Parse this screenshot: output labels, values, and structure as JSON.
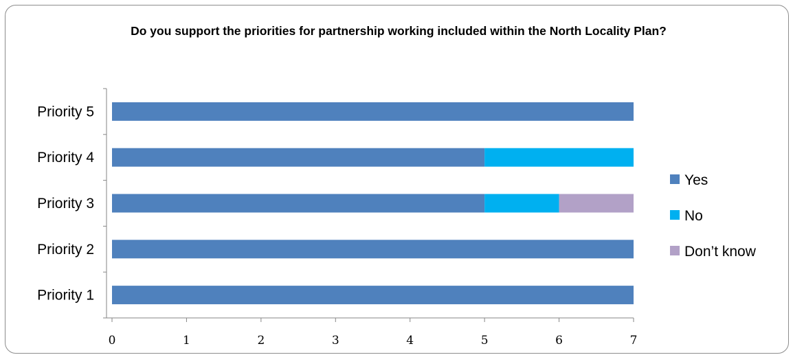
{
  "chart_data": {
    "type": "bar",
    "orientation": "horizontal",
    "stacked": true,
    "title": "Do you support the priorities for partnership working included within the North Locality Plan?",
    "categories": [
      "Priority 1",
      "Priority 2",
      "Priority 3",
      "Priority 4",
      "Priority 5"
    ],
    "series": [
      {
        "name": "Yes",
        "color": "#4F81BD",
        "values": [
          7,
          7,
          5,
          5,
          7
        ]
      },
      {
        "name": "No",
        "color": "#00B0F0",
        "values": [
          0,
          0,
          1,
          2,
          0
        ]
      },
      {
        "name": "Don’t know",
        "color": "#B2A1C7",
        "values": [
          0,
          0,
          1,
          0,
          0
        ]
      }
    ],
    "xlim": [
      0,
      7
    ],
    "xticks": [
      "0",
      "1",
      "2",
      "3",
      "4",
      "5",
      "6",
      "7"
    ],
    "grid": false,
    "legend_position": "right"
  }
}
